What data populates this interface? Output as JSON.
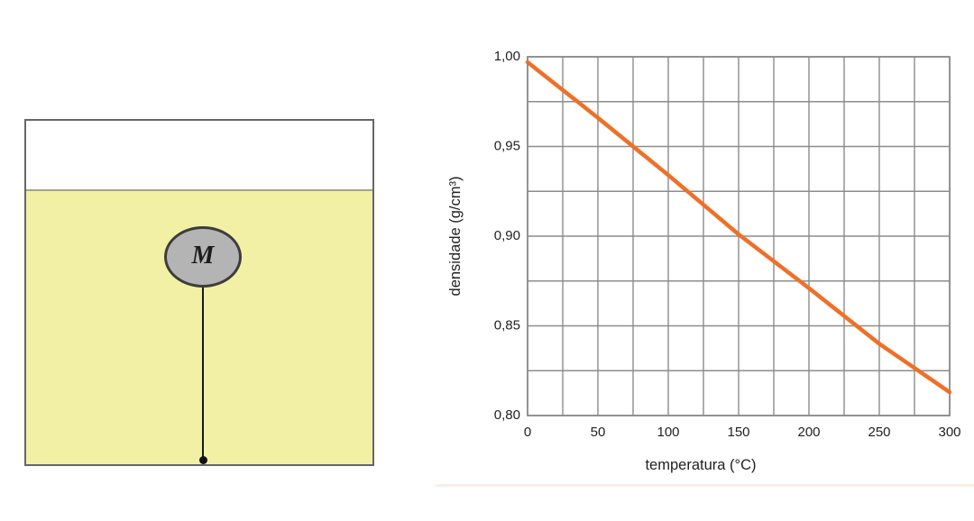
{
  "diagram": {
    "ball_label": "M",
    "colors": {
      "liquid": "#f2f0a5",
      "ball_fill": "#b4b4b4",
      "ball_border": "#3d3d3d",
      "container_border": "#666666",
      "string": "#181818"
    }
  },
  "chart_data": {
    "type": "line",
    "title": "",
    "xlabel": "temperatura (°C)",
    "ylabel": "densidade (g/cm³)",
    "x": [
      0,
      50,
      100,
      150,
      200,
      250,
      300
    ],
    "series": [
      {
        "name": "densidade",
        "values": [
          0.997,
          0.966,
          0.934,
          0.901,
          0.871,
          0.84,
          0.813
        ]
      }
    ],
    "xlim": [
      0,
      300
    ],
    "ylim": [
      0.8,
      1.0
    ],
    "x_tick_values": [
      0,
      50,
      100,
      150,
      200,
      250,
      300
    ],
    "x_tick_labels": [
      "0",
      "50",
      "100",
      "150",
      "200",
      "250",
      "300"
    ],
    "y_tick_values": [
      1.0,
      0.95,
      0.9,
      0.85,
      0.8
    ],
    "y_tick_labels": [
      "1,00",
      "0,95",
      "0,90",
      "0,85",
      "0,80"
    ],
    "x_minor_step": 25,
    "y_minor_step": 0.025,
    "grid": true,
    "legend_position": "none",
    "line_color": "#ef7028",
    "grid_color": "#8c8c8c",
    "text_color": "#1f1f1f"
  }
}
